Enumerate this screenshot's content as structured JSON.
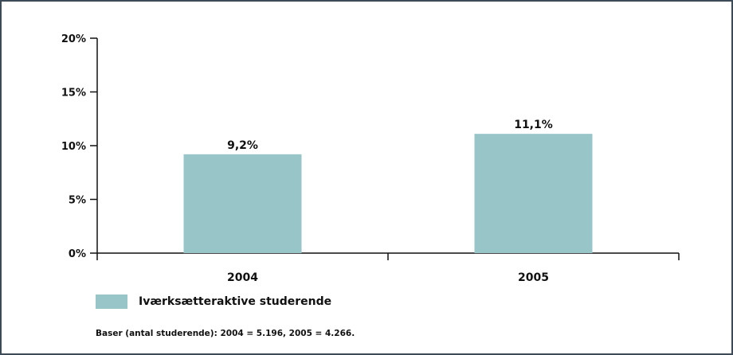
{
  "chart_data": {
    "type": "bar",
    "categories": [
      "2004",
      "2005"
    ],
    "series": [
      {
        "name": "Iværksætteraktive studerende",
        "values": [
          9.2,
          11.1
        ],
        "labels": [
          "9,2%",
          "11,1%"
        ],
        "color": "#98c6c8"
      }
    ],
    "yticks": [
      {
        "value": 0,
        "label": "0%"
      },
      {
        "value": 5,
        "label": "5%"
      },
      {
        "value": 10,
        "label": "10%"
      },
      {
        "value": 15,
        "label": "15%"
      },
      {
        "value": 20,
        "label": "20%"
      }
    ],
    "ylim": [
      0,
      20
    ],
    "grid": false,
    "legend_position": "bottom-left"
  },
  "footnote": "Baser (antal studerende): 2004 = 5.196, 2005 = 4.266.",
  "colors": {
    "frame": "#3d4a57",
    "bar": "#98c6c8",
    "axis": "#111111"
  }
}
